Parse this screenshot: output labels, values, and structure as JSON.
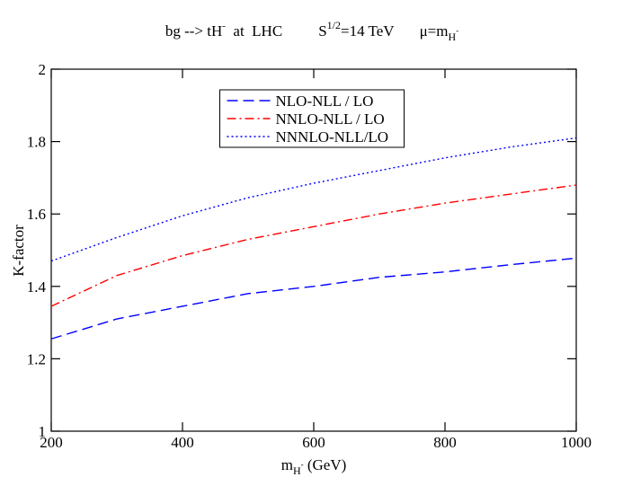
{
  "chart_data": {
    "type": "line",
    "title_parts": [
      "bg --> tH",
      "-",
      "  at  LHC",
      "S",
      "1/2",
      "=14 TeV",
      "μ=m",
      "H",
      "-"
    ],
    "xlabel_parts": [
      "m",
      "H",
      "-",
      " (GeV)"
    ],
    "ylabel": "K-factor",
    "x": [
      200,
      300,
      400,
      500,
      600,
      700,
      800,
      900,
      1000
    ],
    "series": [
      {
        "name": "NLO-NLL / LO",
        "color": "#0000ff",
        "dash": "dashed",
        "values": [
          1.255,
          1.31,
          1.345,
          1.38,
          1.4,
          1.425,
          1.44,
          1.46,
          1.478
        ]
      },
      {
        "name": "NNLO-NLL / LO",
        "color": "#ff0000",
        "dash": "dashdot",
        "values": [
          1.345,
          1.43,
          1.485,
          1.53,
          1.565,
          1.6,
          1.63,
          1.655,
          1.68
        ]
      },
      {
        "name": "NNNLO-NLL/LO",
        "color": "#0000ff",
        "dash": "dotted",
        "values": [
          1.47,
          1.535,
          1.595,
          1.645,
          1.685,
          1.72,
          1.755,
          1.785,
          1.81
        ]
      }
    ],
    "xlim": [
      200,
      1000
    ],
    "xticks": [
      200,
      400,
      600,
      800,
      1000
    ],
    "ylim": [
      1,
      2
    ],
    "yticks": [
      1,
      1.2,
      1.4,
      1.6,
      1.8,
      2
    ],
    "grid": false,
    "legend": "upper center"
  }
}
